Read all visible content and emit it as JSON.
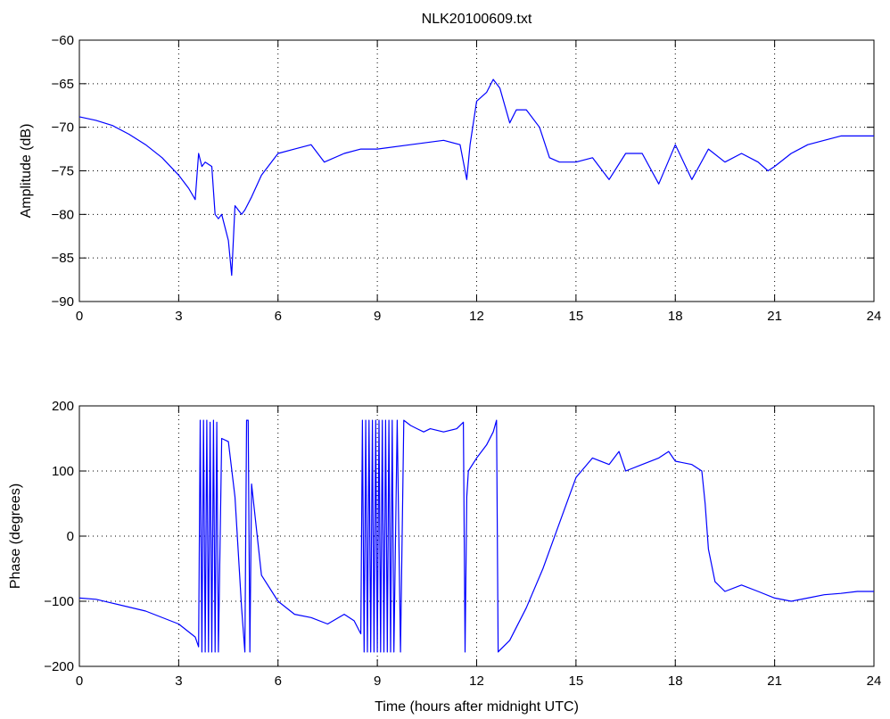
{
  "chart_data": [
    {
      "type": "line",
      "title": "NLK20100609.txt",
      "xlabel": "",
      "ylabel": "Amplitude (dB)",
      "xlim": [
        0,
        24
      ],
      "ylim": [
        -90,
        -60
      ],
      "xticks": [
        "0",
        "3",
        "6",
        "9",
        "12",
        "15",
        "18",
        "21",
        "24"
      ],
      "yticks": [
        "−90",
        "−85",
        "−80",
        "−75",
        "−70",
        "−65",
        "−60"
      ],
      "grid": true,
      "color": "#0000ff",
      "series": [
        {
          "x": [
            0,
            0.5,
            1,
            1.5,
            2,
            2.5,
            3,
            3.3,
            3.5,
            3.6,
            3.7,
            3.8,
            4.0,
            4.1,
            4.2,
            4.3,
            4.5,
            4.6,
            4.7,
            4.9,
            5.0,
            5.2,
            5.5,
            6.0,
            6.5,
            7.0,
            7.4,
            8.0,
            8.5,
            9.0,
            10.0,
            11.0,
            11.5,
            11.7,
            11.8,
            12.0,
            12.3,
            12.5,
            12.7,
            13.0,
            13.2,
            13.5,
            13.9,
            14.2,
            14.5,
            15.0,
            15.5,
            16.0,
            16.5,
            17.0,
            17.5,
            18.0,
            18.5,
            19.0,
            19.5,
            20.0,
            20.5,
            20.8,
            21.0,
            21.5,
            22.0,
            22.5,
            23.0,
            23.5,
            24.0
          ],
          "values": [
            -68.8,
            -69.2,
            -69.8,
            -70.8,
            -72.0,
            -73.5,
            -75.5,
            -77.0,
            -78.3,
            -73.0,
            -74.5,
            -74.0,
            -74.5,
            -80.0,
            -80.5,
            -80.0,
            -83.0,
            -87.0,
            -79.0,
            -80.0,
            -79.5,
            -78.0,
            -75.5,
            -73.0,
            -72.5,
            -72.0,
            -74.0,
            -73.0,
            -72.5,
            -72.5,
            -72.0,
            -71.5,
            -72.0,
            -76.0,
            -72.0,
            -67.0,
            -66.0,
            -64.5,
            -65.5,
            -69.5,
            -68.0,
            -68.0,
            -70.0,
            -73.5,
            -74.0,
            -74.0,
            -73.5,
            -76.0,
            -73.0,
            -73.0,
            -76.5,
            -72.0,
            -76.0,
            -72.5,
            -74.0,
            -73.0,
            -74.0,
            -75.0,
            -74.5,
            -73.0,
            -72.0,
            -71.5,
            -71.0,
            -71.0,
            -71.0
          ]
        }
      ]
    },
    {
      "type": "line",
      "title": "",
      "xlabel": "Time (hours after midnight UTC)",
      "ylabel": "Phase (degrees)",
      "xlim": [
        0,
        24
      ],
      "ylim": [
        -200,
        200
      ],
      "xticks": [
        "0",
        "3",
        "6",
        "9",
        "12",
        "15",
        "18",
        "21",
        "24"
      ],
      "yticks": [
        "−200",
        "−100",
        "0",
        "100",
        "200"
      ],
      "grid": true,
      "color": "#0000ff",
      "series": [
        {
          "x": [
            0,
            0.5,
            1,
            2,
            3,
            3.5,
            3.6,
            3.65,
            3.7,
            3.75,
            3.8,
            3.85,
            3.9,
            3.95,
            4.0,
            4.05,
            4.1,
            4.15,
            4.2,
            4.3,
            4.5,
            4.7,
            4.9,
            5.0,
            5.05,
            5.1,
            5.15,
            5.2,
            5.5,
            6.0,
            6.5,
            7.0,
            7.5,
            8.0,
            8.3,
            8.5,
            8.55,
            8.6,
            8.65,
            8.7,
            8.75,
            8.8,
            8.85,
            8.9,
            8.95,
            9.0,
            9.05,
            9.1,
            9.15,
            9.2,
            9.25,
            9.3,
            9.35,
            9.4,
            9.45,
            9.5,
            9.6,
            9.7,
            9.8,
            10.0,
            10.2,
            10.4,
            10.6,
            11.0,
            11.4,
            11.6,
            11.65,
            11.7,
            11.75,
            12.0,
            12.3,
            12.5,
            12.6,
            12.65,
            12.7,
            13.0,
            13.5,
            14.0,
            14.5,
            15.0,
            15.5,
            16.0,
            16.3,
            16.5,
            17.0,
            17.5,
            17.8,
            18.0,
            18.5,
            18.8,
            18.9,
            19.0,
            19.2,
            19.5,
            20.0,
            20.5,
            21.0,
            21.5,
            22.0,
            22.5,
            23.0,
            23.5,
            24.0
          ],
          "values": [
            -95,
            -97,
            -103,
            -115,
            -135,
            -155,
            -170,
            178,
            -178,
            178,
            -178,
            178,
            -178,
            175,
            -178,
            178,
            -178,
            175,
            -178,
            150,
            145,
            60,
            -110,
            -178,
            178,
            178,
            -178,
            80,
            -60,
            -100,
            -120,
            -125,
            -135,
            -120,
            -130,
            -150,
            178,
            -178,
            178,
            -178,
            178,
            -178,
            178,
            -178,
            178,
            -178,
            178,
            -178,
            178,
            -178,
            178,
            -178,
            178,
            -178,
            178,
            -178,
            178,
            -178,
            178,
            170,
            165,
            160,
            165,
            160,
            165,
            175,
            -178,
            60,
            100,
            120,
            140,
            160,
            178,
            -178,
            -175,
            -160,
            -110,
            -50,
            20,
            90,
            120,
            110,
            130,
            100,
            110,
            120,
            130,
            115,
            110,
            100,
            50,
            -20,
            -70,
            -85,
            -75,
            -85,
            -95,
            -100,
            -95,
            -90,
            -88,
            -85,
            -85
          ]
        }
      ]
    }
  ]
}
